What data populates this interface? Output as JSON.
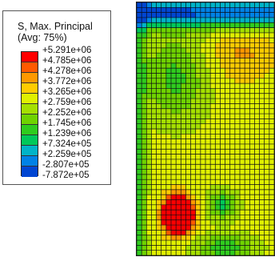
{
  "legend": {
    "title_line1": "S, Max. Principal",
    "title_line2": "(Avg: 75%)",
    "labels": [
      "+5.291e+06",
      "+4.785e+06",
      "+4.278e+06",
      "+3.772e+06",
      "+3.265e+06",
      "+2.759e+06",
      "+2.252e+06",
      "+1.745e+06",
      "+1.239e+06",
      "+7.324e+05",
      "+2.259e+05",
      "-2.807e+05",
      "-7.872e+05"
    ],
    "colors": [
      "#ff0000",
      "#ff5a00",
      "#ff9900",
      "#ffcc00",
      "#e0f000",
      "#a5e000",
      "#6fd300",
      "#2fcc1e",
      "#00c85a",
      "#00b4c8",
      "#0082e6",
      "#0046d2",
      "#0000c8"
    ]
  },
  "colors": {
    "mesh_line": "#0a0a14",
    "border": "#222222"
  }
}
